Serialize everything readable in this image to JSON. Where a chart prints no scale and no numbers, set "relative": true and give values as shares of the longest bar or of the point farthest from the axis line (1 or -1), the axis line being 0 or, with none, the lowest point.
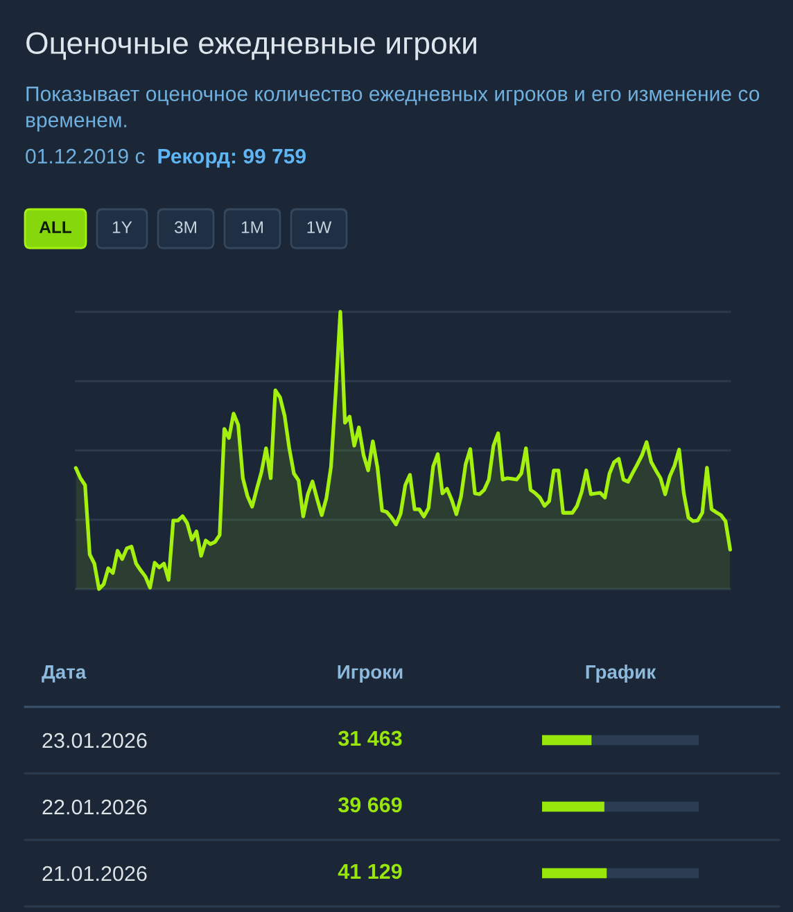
{
  "chart_data": [
    {
      "type": "area",
      "title": "Оценочные ежедневные игроки",
      "subtitle": "Показывает оценочное количество ежедневных игроков и его изменение со временем.",
      "annotations": [
        "01.12.2019 с",
        "Рекорд: 99 759",
        "ALL",
        "1Y",
        "3M",
        "1M",
        "1W"
      ],
      "relative": true,
      "grid": "y",
      "tick_labels": false,
      "color": "#a4f00e",
      "categories": [
        null,
        null,
        null,
        null,
        null,
        null,
        null,
        null,
        null,
        null,
        null,
        null,
        null,
        null,
        null,
        null,
        null,
        null,
        null,
        null,
        null,
        null,
        null,
        null,
        null,
        null,
        null,
        null,
        null,
        null,
        null,
        null,
        null,
        null,
        null,
        null,
        null,
        null,
        null,
        null,
        null,
        null,
        null,
        null,
        null,
        null,
        null,
        null,
        null,
        null,
        null,
        null,
        null,
        null,
        null,
        null,
        null,
        null,
        null,
        null,
        null,
        null,
        null,
        null,
        null,
        null,
        null,
        null,
        null,
        null,
        null,
        null,
        null,
        null,
        null,
        null,
        null,
        null,
        null,
        null,
        null,
        null,
        null,
        null,
        null,
        null,
        null,
        null,
        null,
        null,
        null,
        null,
        null,
        null,
        null,
        null,
        null,
        null,
        null,
        null,
        null,
        null,
        null,
        null,
        null,
        null,
        null,
        null,
        null,
        null,
        null,
        null,
        null,
        null,
        null,
        null,
        null,
        null,
        null,
        null,
        null,
        null,
        null,
        null,
        null,
        null,
        null,
        null,
        null,
        null,
        null,
        null,
        null,
        null,
        null,
        null,
        null,
        null,
        null,
        null,
        null,
        null
      ],
      "values": [
        0.437,
        0.4,
        0.375,
        0.125,
        0.092,
        0.0,
        0.017,
        0.075,
        0.058,
        0.138,
        0.108,
        0.147,
        0.153,
        0.092,
        0.067,
        0.045,
        0.005,
        0.095,
        0.078,
        0.092,
        0.033,
        0.247,
        0.247,
        0.263,
        0.238,
        0.178,
        0.208,
        0.12,
        0.175,
        0.162,
        0.17,
        0.195,
        0.578,
        0.545,
        0.633,
        0.592,
        0.4,
        0.335,
        0.297,
        0.361,
        0.422,
        0.508,
        0.4,
        0.717,
        0.692,
        0.625,
        0.508,
        0.417,
        0.392,
        0.262,
        0.342,
        0.388,
        0.325,
        0.267,
        0.328,
        0.442,
        0.708,
        1.0,
        0.6,
        0.622,
        0.517,
        0.583,
        0.484,
        0.428,
        0.533,
        0.439,
        0.283,
        0.278,
        0.258,
        0.233,
        0.272,
        0.375,
        0.412,
        0.288,
        0.288,
        0.262,
        0.292,
        0.442,
        0.487,
        0.345,
        0.362,
        0.322,
        0.27,
        0.333,
        0.45,
        0.505,
        0.345,
        0.342,
        0.358,
        0.395,
        0.517,
        0.562,
        0.395,
        0.4,
        0.398,
        0.395,
        0.417,
        0.508,
        0.358,
        0.346,
        0.33,
        0.3,
        0.317,
        0.428,
        0.428,
        0.275,
        0.275,
        0.275,
        0.3,
        0.35,
        0.428,
        0.342,
        0.345,
        0.347,
        0.33,
        0.417,
        0.458,
        0.47,
        0.395,
        0.387,
        0.419,
        0.45,
        0.483,
        0.53,
        0.458,
        0.428,
        0.4,
        0.342,
        0.407,
        0.445,
        0.503,
        0.347,
        0.258,
        0.245,
        0.247,
        0.275,
        0.438,
        0.288,
        0.277,
        0.267,
        0.245,
        0.142
      ]
    },
    {
      "type": "bar",
      "orientation": "horizontal",
      "annotations": [
        "Дата",
        "Игроки",
        "График"
      ],
      "categories": [
        "23.01.2026",
        "22.01.2026",
        "21.01.2026"
      ],
      "values": [
        31463,
        39669,
        41129
      ],
      "value_labels": [
        "31 463",
        "39 669",
        "41 129"
      ],
      "color": "#98e60c",
      "xlim": [
        0,
        99759
      ],
      "tick_labels": "y"
    }
  ]
}
